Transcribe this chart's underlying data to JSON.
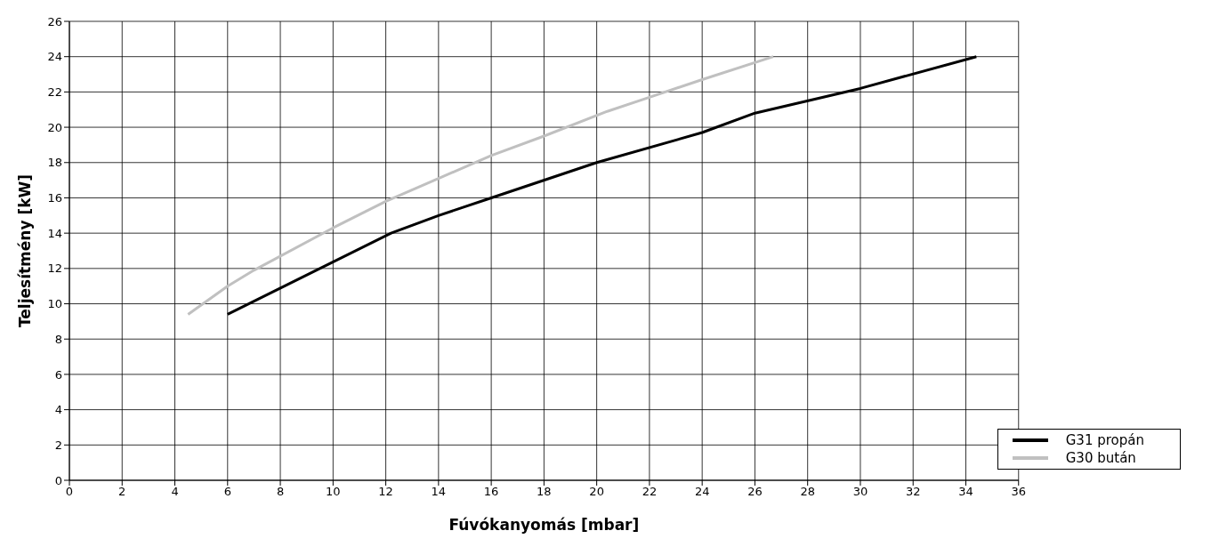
{
  "chart_data": {
    "type": "line",
    "xlabel": "Fúvókanyomás [mbar]",
    "ylabel": "Teljesítmény [kW]",
    "xlim": [
      0,
      36
    ],
    "xticks": [
      0,
      2,
      4,
      6,
      8,
      10,
      12,
      14,
      16,
      18,
      20,
      22,
      24,
      26,
      28,
      30,
      32,
      34,
      36
    ],
    "ylim": [
      0,
      26
    ],
    "yticks": [
      0,
      2,
      4,
      6,
      8,
      10,
      12,
      14,
      16,
      18,
      20,
      22,
      24,
      26
    ],
    "grid": true,
    "legend": "bottom right",
    "marker": "none",
    "line_style": "solid",
    "series": [
      {
        "name": "G31  propán",
        "color": "#000000",
        "x": [
          6,
          12.2,
          14,
          16,
          20,
          24,
          26,
          30,
          34.4
        ],
        "values": [
          9.4,
          14,
          15,
          16,
          18,
          19.7,
          20.8,
          22.2,
          24
        ]
      },
      {
        "name": "G30  bután",
        "color": "#c0c0c0",
        "x": [
          4.5,
          6,
          7,
          10,
          12,
          14,
          16,
          18,
          20.4,
          22,
          24,
          26.7
        ],
        "values": [
          9.4,
          11,
          11.9,
          14.3,
          15.8,
          17.1,
          18.4,
          19.5,
          20.9,
          21.7,
          22.7,
          24
        ]
      }
    ]
  }
}
